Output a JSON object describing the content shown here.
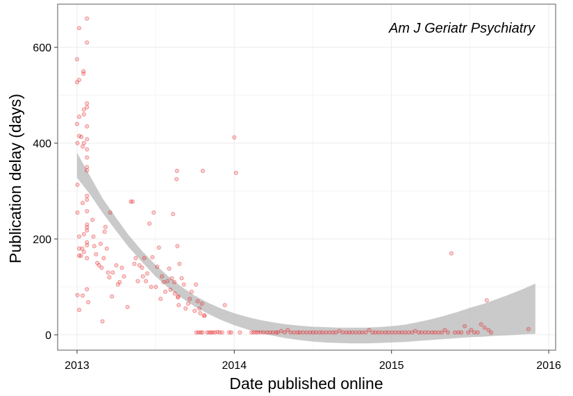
{
  "chart_data": {
    "type": "scatter",
    "title": "Am J Geriatr Psychiatry",
    "xlabel": "Date published online",
    "ylabel": "Publication delay (days)",
    "x_ticks": [
      "2013",
      "2014",
      "2015",
      "2016"
    ],
    "y_ticks": [
      "0",
      "200",
      "400",
      "600"
    ],
    "xlim": [
      "2012-11-17",
      "2016-01-17"
    ],
    "ylim": [
      -32,
      690
    ],
    "grid": true,
    "point_color": "#e41a1c",
    "band_color": "#b3b3b3",
    "series": [
      {
        "points": [
          [
            "2013-01-01",
            575
          ],
          [
            "2013-01-01",
            527
          ],
          [
            "2013-01-01",
            440
          ],
          [
            "2013-01-02",
            400
          ],
          [
            "2013-01-02",
            313
          ],
          [
            "2013-01-02",
            255
          ],
          [
            "2013-01-02",
            83
          ],
          [
            "2013-01-06",
            640
          ],
          [
            "2013-01-06",
            532
          ],
          [
            "2013-01-06",
            455
          ],
          [
            "2013-01-06",
            415
          ],
          [
            "2013-01-06",
            205
          ],
          [
            "2013-01-06",
            180
          ],
          [
            "2013-01-06",
            165
          ],
          [
            "2013-01-06",
            52
          ],
          [
            "2013-01-10",
            165
          ],
          [
            "2013-01-11",
            413
          ],
          [
            "2013-01-13",
            180
          ],
          [
            "2013-01-14",
            393
          ],
          [
            "2013-01-14",
            275
          ],
          [
            "2013-01-14",
            82
          ],
          [
            "2013-01-16",
            550
          ],
          [
            "2013-01-16",
            545
          ],
          [
            "2013-01-17",
            470
          ],
          [
            "2013-01-17",
            460
          ],
          [
            "2013-01-17",
            400
          ],
          [
            "2013-01-17",
            210
          ],
          [
            "2013-01-17",
            173
          ],
          [
            "2013-01-24",
            660
          ],
          [
            "2013-01-24",
            610
          ],
          [
            "2013-01-24",
            483
          ],
          [
            "2013-01-24",
            475
          ],
          [
            "2013-01-24",
            435
          ],
          [
            "2013-01-24",
            408
          ],
          [
            "2013-01-24",
            387
          ],
          [
            "2013-01-24",
            370
          ],
          [
            "2013-01-24",
            350
          ],
          [
            "2013-01-24",
            343
          ],
          [
            "2013-01-24",
            290
          ],
          [
            "2013-01-24",
            282
          ],
          [
            "2013-01-24",
            258
          ],
          [
            "2013-01-24",
            230
          ],
          [
            "2013-01-24",
            224
          ],
          [
            "2013-01-24",
            218
          ],
          [
            "2013-01-24",
            193
          ],
          [
            "2013-01-24",
            187
          ],
          [
            "2013-01-24",
            160
          ],
          [
            "2013-01-24",
            95
          ],
          [
            "2013-01-27",
            68
          ],
          [
            "2013-02-06",
            240
          ],
          [
            "2013-02-08",
            205
          ],
          [
            "2013-02-10",
            185
          ],
          [
            "2013-02-14",
            168
          ],
          [
            "2013-02-17",
            150
          ],
          [
            "2013-02-21",
            145
          ],
          [
            "2013-02-25",
            190
          ],
          [
            "2013-02-27",
            140
          ],
          [
            "2013-03-01",
            28
          ],
          [
            "2013-03-04",
            160
          ],
          [
            "2013-03-06",
            215
          ],
          [
            "2013-03-08",
            225
          ],
          [
            "2013-03-11",
            180
          ],
          [
            "2013-03-14",
            130
          ],
          [
            "2013-03-17",
            120
          ],
          [
            "2013-03-19",
            255
          ],
          [
            "2013-03-23",
            80
          ],
          [
            "2013-03-25",
            130
          ],
          [
            "2013-04-02",
            145
          ],
          [
            "2013-04-06",
            105
          ],
          [
            "2013-04-10",
            110
          ],
          [
            "2013-04-15",
            140
          ],
          [
            "2013-04-20",
            122
          ],
          [
            "2013-04-28",
            58
          ],
          [
            "2013-05-06",
            278
          ],
          [
            "2013-05-10",
            278
          ],
          [
            "2013-05-14",
            148
          ],
          [
            "2013-05-17",
            160
          ],
          [
            "2013-05-22",
            112
          ],
          [
            "2013-05-26",
            145
          ],
          [
            "2013-06-01",
            140
          ],
          [
            "2013-06-03",
            122
          ],
          [
            "2013-06-06",
            160
          ],
          [
            "2013-06-10",
            112
          ],
          [
            "2013-06-13",
            128
          ],
          [
            "2013-06-18",
            232
          ],
          [
            "2013-06-22",
            100
          ],
          [
            "2013-06-25",
            162
          ],
          [
            "2013-06-28",
            255
          ],
          [
            "2013-07-03",
            100
          ],
          [
            "2013-07-06",
            142
          ],
          [
            "2013-07-10",
            182
          ],
          [
            "2013-07-14",
            75
          ],
          [
            "2013-07-17",
            122
          ],
          [
            "2013-07-21",
            110
          ],
          [
            "2013-07-25",
            90
          ],
          [
            "2013-07-30",
            112
          ],
          [
            "2013-08-03",
            138
          ],
          [
            "2013-08-06",
            94
          ],
          [
            "2013-08-09",
            118
          ],
          [
            "2013-08-12",
            252
          ],
          [
            "2013-08-15",
            110
          ],
          [
            "2013-08-16",
            86
          ],
          [
            "2013-08-20",
            325
          ],
          [
            "2013-08-21",
            342
          ],
          [
            "2013-08-22",
            185
          ],
          [
            "2013-08-23",
            78
          ],
          [
            "2013-08-24",
            80
          ],
          [
            "2013-08-25",
            62
          ],
          [
            "2013-08-27",
            148
          ],
          [
            "2013-09-01",
            118
          ],
          [
            "2013-09-06",
            105
          ],
          [
            "2013-09-10",
            55
          ],
          [
            "2013-09-16",
            65
          ],
          [
            "2013-09-20",
            75
          ],
          [
            "2013-09-24",
            90
          ],
          [
            "2013-10-01",
            50
          ],
          [
            "2013-10-04",
            105
          ],
          [
            "2013-10-08",
            70
          ],
          [
            "2013-10-12",
            55
          ],
          [
            "2013-10-14",
            45
          ],
          [
            "2013-10-18",
            65
          ],
          [
            "2013-10-23",
            40
          ],
          [
            "2013-10-05",
            5
          ],
          [
            "2013-10-10",
            5
          ],
          [
            "2013-10-15",
            5
          ],
          [
            "2013-10-19",
            5
          ],
          [
            "2013-10-20",
            342
          ],
          [
            "2013-10-24",
            40
          ],
          [
            "2013-10-30",
            5
          ],
          [
            "2013-11-04",
            5
          ],
          [
            "2013-11-08",
            5
          ],
          [
            "2013-11-12",
            5
          ],
          [
            "2013-11-17",
            5
          ],
          [
            "2013-11-23",
            6
          ],
          [
            "2013-11-28",
            5
          ],
          [
            "2013-12-04",
            5
          ],
          [
            "2013-12-10",
            62
          ],
          [
            "2013-12-20",
            5
          ],
          [
            "2013-12-25",
            5
          ],
          [
            "2014-01-01",
            412
          ],
          [
            "2014-01-05",
            338
          ],
          [
            "2014-01-14",
            5
          ],
          [
            "2014-02-10",
            5
          ],
          [
            "2014-02-15",
            5
          ],
          [
            "2014-02-20",
            5
          ],
          [
            "2014-02-25",
            5
          ],
          [
            "2014-03-03",
            5
          ],
          [
            "2014-03-10",
            5
          ],
          [
            "2014-03-18",
            5
          ],
          [
            "2014-03-25",
            5
          ],
          [
            "2014-04-01",
            5
          ],
          [
            "2014-04-08",
            5
          ],
          [
            "2014-04-12",
            5
          ],
          [
            "2014-04-20",
            8
          ],
          [
            "2014-04-28",
            5
          ],
          [
            "2014-05-05",
            10
          ],
          [
            "2014-05-12",
            5
          ],
          [
            "2014-05-20",
            5
          ],
          [
            "2014-05-28",
            5
          ],
          [
            "2014-06-02",
            5
          ],
          [
            "2014-06-10",
            5
          ],
          [
            "2014-06-18",
            5
          ],
          [
            "2014-06-26",
            5
          ],
          [
            "2014-07-03",
            5
          ],
          [
            "2014-07-10",
            5
          ],
          [
            "2014-07-18",
            5
          ],
          [
            "2014-07-25",
            5
          ],
          [
            "2014-08-02",
            5
          ],
          [
            "2014-08-10",
            5
          ],
          [
            "2014-08-18",
            5
          ],
          [
            "2014-08-25",
            5
          ],
          [
            "2014-09-02",
            8
          ],
          [
            "2014-09-10",
            5
          ],
          [
            "2014-09-18",
            5
          ],
          [
            "2014-09-25",
            5
          ],
          [
            "2014-10-02",
            5
          ],
          [
            "2014-10-10",
            5
          ],
          [
            "2014-10-18",
            5
          ],
          [
            "2014-10-25",
            5
          ],
          [
            "2014-11-02",
            5
          ],
          [
            "2014-11-10",
            10
          ],
          [
            "2014-11-18",
            5
          ],
          [
            "2014-11-25",
            5
          ],
          [
            "2014-12-02",
            5
          ],
          [
            "2014-12-10",
            5
          ],
          [
            "2014-12-18",
            5
          ],
          [
            "2014-12-25",
            5
          ],
          [
            "2015-01-02",
            5
          ],
          [
            "2015-01-10",
            5
          ],
          [
            "2015-01-18",
            5
          ],
          [
            "2015-01-25",
            5
          ],
          [
            "2015-02-02",
            5
          ],
          [
            "2015-02-10",
            5
          ],
          [
            "2015-02-18",
            5
          ],
          [
            "2015-02-25",
            8
          ],
          [
            "2015-03-05",
            5
          ],
          [
            "2015-03-12",
            5
          ],
          [
            "2015-03-20",
            5
          ],
          [
            "2015-03-28",
            5
          ],
          [
            "2015-04-05",
            5
          ],
          [
            "2015-04-12",
            5
          ],
          [
            "2015-04-20",
            5
          ],
          [
            "2015-04-28",
            5
          ],
          [
            "2015-05-05",
            10
          ],
          [
            "2015-05-12",
            5
          ],
          [
            "2015-05-20",
            170
          ],
          [
            "2015-05-28",
            5
          ],
          [
            "2015-06-05",
            5
          ],
          [
            "2015-06-12",
            5
          ],
          [
            "2015-06-20",
            18
          ],
          [
            "2015-06-28",
            5
          ],
          [
            "2015-07-05",
            10
          ],
          [
            "2015-07-12",
            5
          ],
          [
            "2015-07-20",
            5
          ],
          [
            "2015-07-28",
            22
          ],
          [
            "2015-08-05",
            15
          ],
          [
            "2015-08-10",
            72
          ],
          [
            "2015-08-14",
            10
          ],
          [
            "2015-08-20",
            5
          ],
          [
            "2015-11-15",
            12
          ]
        ]
      }
    ],
    "trend_band": {
      "x": [
        "2013-01-01",
        "2013-02-01",
        "2013-03-01",
        "2013-04-01",
        "2013-05-01",
        "2013-06-01",
        "2013-07-01",
        "2013-08-01",
        "2013-09-01",
        "2013-10-01",
        "2013-11-01",
        "2013-12-01",
        "2014-01-01",
        "2014-02-01",
        "2014-03-01",
        "2014-04-01",
        "2014-05-01",
        "2014-06-01",
        "2014-07-01",
        "2014-08-01",
        "2014-09-01",
        "2014-10-01",
        "2014-11-01",
        "2014-12-01",
        "2015-01-01",
        "2015-02-01",
        "2015-03-01",
        "2015-04-01",
        "2015-05-01",
        "2015-06-01",
        "2015-07-01",
        "2015-08-01",
        "2015-09-01",
        "2015-10-01",
        "2015-11-01",
        "2015-12-01"
      ],
      "upper": [
        380,
        330,
        285,
        245,
        208,
        175,
        147,
        122,
        100,
        82,
        67,
        55,
        45,
        37,
        31,
        26,
        22,
        19,
        17,
        16,
        15,
        15,
        15,
        16,
        18,
        21,
        26,
        32,
        39,
        47,
        56,
        64,
        74,
        84,
        95,
        107
      ],
      "lower": [
        328,
        292,
        255,
        218,
        183,
        152,
        123,
        98,
        77,
        59,
        44,
        31,
        20,
        11,
        4,
        -2,
        -7,
        -11,
        -14,
        -16,
        -17,
        -18,
        -18,
        -17,
        -16,
        -15,
        -13,
        -11,
        -9,
        -7,
        -5,
        -4,
        -2,
        -1,
        1,
        2
      ]
    }
  }
}
